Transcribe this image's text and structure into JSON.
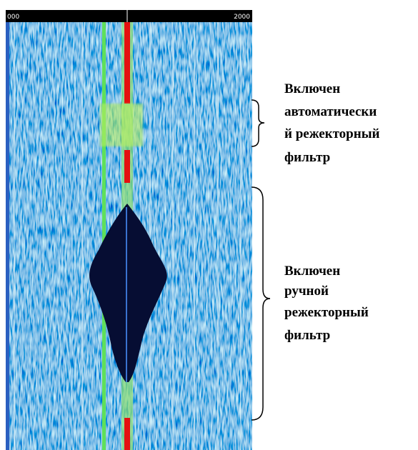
{
  "scale": {
    "left": "000",
    "right": "2000"
  },
  "annotations": [
    {
      "lines": [
        "Включен",
        "автоматически",
        "й режекторный",
        "фильтр"
      ]
    },
    {
      "lines": [
        "Включен",
        "ручной",
        "режекторный",
        "фильтр"
      ]
    }
  ]
}
